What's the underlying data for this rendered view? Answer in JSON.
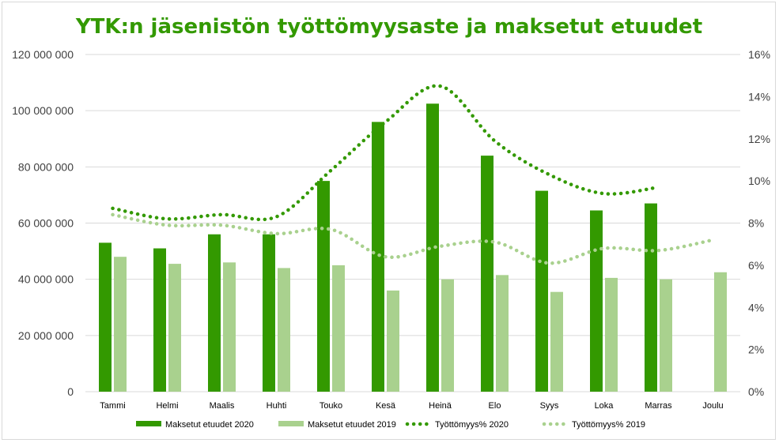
{
  "chart_data": {
    "type": "bar",
    "title": "YTK:n jäsenistön työttömyysaste ja maksetut etuudet",
    "categories": [
      "Tammi",
      "Helmi",
      "Maalis",
      "Huhti",
      "Touko",
      "Kesä",
      "Heinä",
      "Elo",
      "Syys",
      "Loka",
      "Marras",
      "Joulu"
    ],
    "y_left": {
      "ylim": [
        0,
        120000000
      ],
      "ticks": [
        "0",
        "20 000 000",
        "40 000 000",
        "60 000 000",
        "80 000 000",
        "100 000 000",
        "120 000 000"
      ]
    },
    "y_right": {
      "ylim": [
        0,
        16
      ],
      "ticks": [
        "0%",
        "2%",
        "4%",
        "6%",
        "8%",
        "10%",
        "12%",
        "14%",
        "16%"
      ]
    },
    "grid": true,
    "legend_position": "bottom",
    "series": [
      {
        "name": "Maksetut etuudet 2020",
        "kind": "bar",
        "axis": "left",
        "color": "#339900",
        "values": [
          53000000,
          51000000,
          56000000,
          56000000,
          75000000,
          96000000,
          102500000,
          84000000,
          71500000,
          64500000,
          67000000,
          null
        ]
      },
      {
        "name": "Maksetut etuudet 2019",
        "kind": "bar",
        "axis": "left",
        "color": "#a9d18e",
        "values": [
          48000000,
          45500000,
          46000000,
          44000000,
          45000000,
          36000000,
          40000000,
          41500000,
          35500000,
          40500000,
          40000000,
          42500000
        ]
      },
      {
        "name": "Työttömyys% 2020",
        "kind": "line-dotted",
        "axis": "right",
        "color": "#339900",
        "values": [
          8.7,
          8.2,
          8.4,
          8.3,
          10.5,
          12.8,
          14.5,
          11.9,
          10.3,
          9.4,
          9.7,
          null
        ]
      },
      {
        "name": "Työttömyys% 2019",
        "kind": "line-dotted",
        "axis": "right",
        "color": "#a9d18e",
        "values": [
          8.4,
          7.9,
          7.9,
          7.5,
          7.7,
          6.4,
          6.9,
          7.1,
          6.1,
          6.8,
          6.7,
          7.2
        ]
      }
    ],
    "colors": {
      "title": "#339900",
      "grid": "#d9d9d9"
    }
  }
}
